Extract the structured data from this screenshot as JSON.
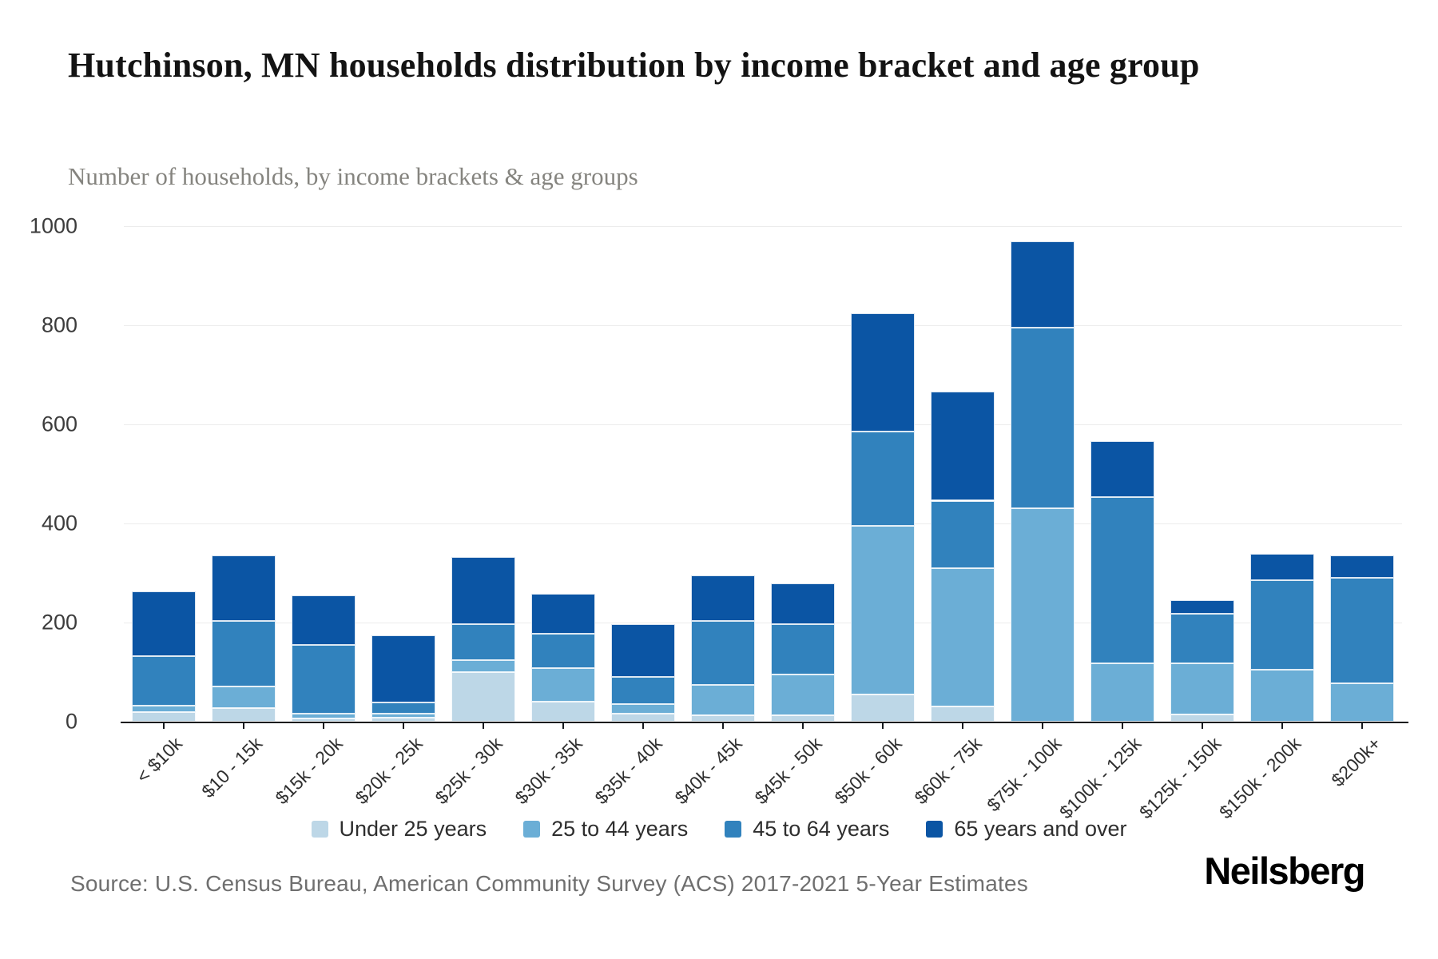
{
  "header": {
    "title": "Hutchinson, MN households distribution by income bracket and age group",
    "subtitle": "Number of households, by income brackets & age groups"
  },
  "footer": {
    "source": "Source: U.S. Census Bureau, American Community Survey (ACS) 2017-2021 5-Year Estimates",
    "brand": "Neilsberg"
  },
  "chart_data": {
    "type": "bar",
    "stacked": true,
    "title": "Hutchinson, MN households distribution by income bracket and age group",
    "xlabel": "",
    "ylabel": "Number of households",
    "ylim": [
      0,
      1000
    ],
    "yticks": [
      0,
      200,
      400,
      600,
      800,
      1000
    ],
    "grid": "horizontal",
    "legend_position": "bottom-center",
    "categories": [
      "< $10k",
      "$10 - 15k",
      "$15k - 20k",
      "$20k - 25k",
      "$25k - 30k",
      "$30k - 35k",
      "$35k - 40k",
      "$40k - 45k",
      "$45k - 50k",
      "$50k - 60k",
      "$60k - 75k",
      "$75k - 100k",
      "$100k - 125k",
      "$125k - 150k",
      "$150k - 200k",
      "$200k+"
    ],
    "series": [
      {
        "name": "Under 25 years",
        "color": "#bdd7e7",
        "values": [
          20,
          28,
          6,
          8,
          100,
          40,
          16,
          13,
          13,
          55,
          30,
          0,
          0,
          15,
          0,
          0
        ]
      },
      {
        "name": "25 to 44 years",
        "color": "#6baed6",
        "values": [
          13,
          43,
          10,
          8,
          24,
          68,
          20,
          61,
          82,
          340,
          280,
          430,
          117,
          102,
          105,
          78
        ]
      },
      {
        "name": "45 to 64 years",
        "color": "#3182bd",
        "values": [
          100,
          133,
          139,
          23,
          73,
          70,
          54,
          129,
          102,
          190,
          136,
          365,
          336,
          100,
          180,
          213
        ]
      },
      {
        "name": "65 years and over",
        "color": "#0b55a4",
        "values": [
          130,
          131,
          100,
          136,
          135,
          80,
          107,
          92,
          82,
          240,
          220,
          175,
          113,
          28,
          53,
          44
        ]
      }
    ]
  }
}
